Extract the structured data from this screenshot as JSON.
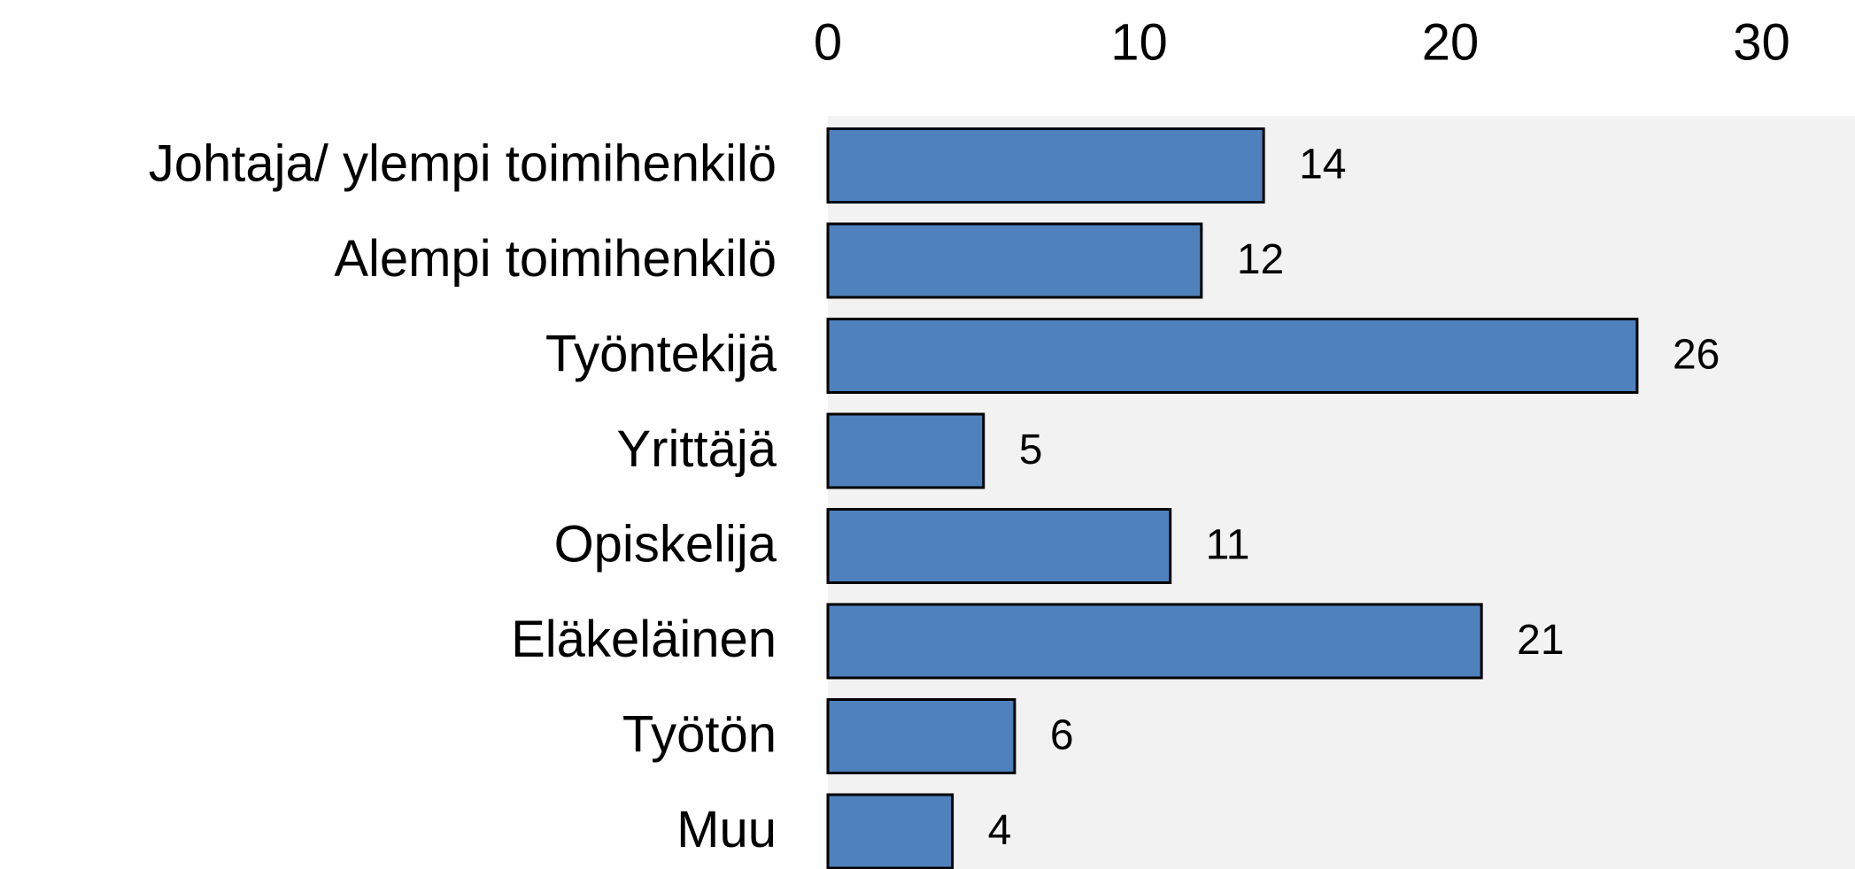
{
  "chart_data": {
    "type": "bar",
    "orientation": "horizontal",
    "categories": [
      "Johtaja/ ylempi toimihenkilö",
      "Alempi toimihenkilö",
      "Työntekijä",
      "Yrittäjä",
      "Opiskelija",
      "Eläkeläinen",
      "Työtön",
      "Muu"
    ],
    "values": [
      14,
      12,
      26,
      5,
      11,
      21,
      6,
      4
    ],
    "color": "#4f81bd",
    "xlim": [
      0,
      33
    ],
    "xticks": [
      0,
      10,
      20,
      30
    ],
    "grid": false
  }
}
